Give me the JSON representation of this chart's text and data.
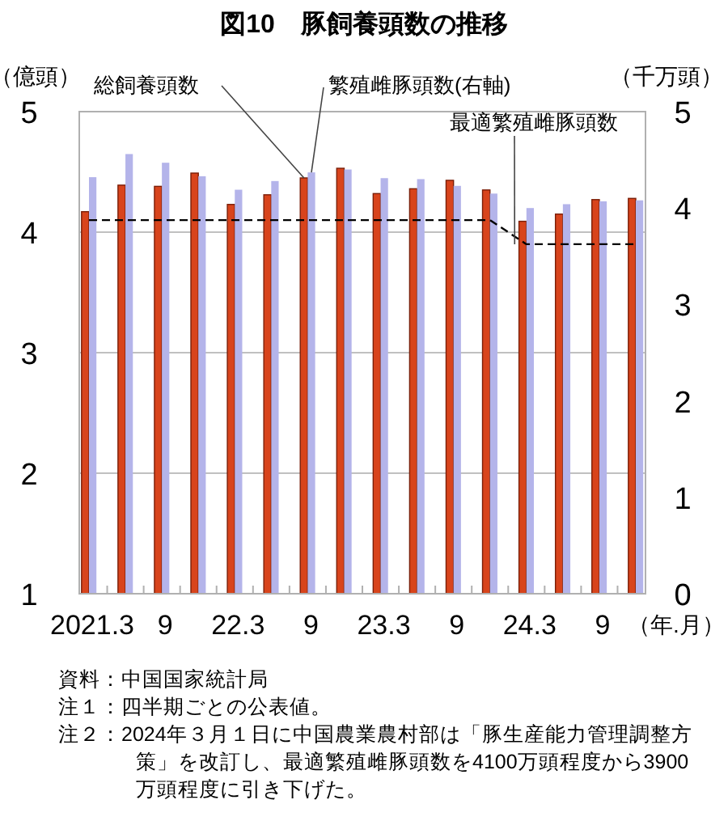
{
  "chart_data": {
    "type": "bar",
    "title": "図10　豚飼養頭数の推移",
    "ylabel": "（億頭）",
    "y2label": "（千万頭）",
    "xlabel": "（年.月）",
    "categories": [
      "2021.3",
      null,
      "9",
      null,
      "22.3",
      null,
      "9",
      null,
      "23.3",
      null,
      "9",
      null,
      "24.3",
      null,
      "9",
      null
    ],
    "series": [
      {
        "name": "総飼養頭数",
        "color": "#d8441c",
        "values": [
          4.17,
          4.39,
          4.38,
          4.49,
          4.23,
          4.31,
          4.45,
          4.53,
          4.32,
          4.36,
          4.43,
          4.35,
          4.09,
          4.15,
          4.27,
          4.28
        ]
      },
      {
        "name": "繁殖雌豚頭数(右軸)",
        "color": "#b4b4ea",
        "axis": "y2",
        "values": [
          4.32,
          4.56,
          4.47,
          4.33,
          4.19,
          4.28,
          4.37,
          4.4,
          4.31,
          4.3,
          4.23,
          4.15,
          4.0,
          4.04,
          4.07,
          4.08
        ]
      },
      {
        "name": "最適繁殖雌豚頭数",
        "type": "line",
        "color": "#000000",
        "line_style": "dashed",
        "values": [
          4.1,
          4.1,
          4.1,
          4.1,
          4.1,
          4.1,
          4.1,
          4.1,
          4.1,
          4.1,
          4.1,
          4.1,
          3.9,
          3.9,
          3.9,
          3.9
        ]
      }
    ],
    "ylim": [
      1,
      5
    ],
    "yticks": [
      1,
      2,
      3,
      4,
      5
    ],
    "y2lim": [
      0,
      5
    ],
    "y2ticks": [
      0,
      1,
      2,
      3,
      4,
      5
    ],
    "grid": "y",
    "annotations": [
      "資料：中国国家統計局",
      "注１：四半期ごとの公表値。",
      "注２：2024年３月１日に中国農業農村部は「豚生産能力管理調整方策」を改訂し、最適繁殖雌豚頭数を4100万頭程度から3900万頭程度に引き下げた。"
    ]
  }
}
